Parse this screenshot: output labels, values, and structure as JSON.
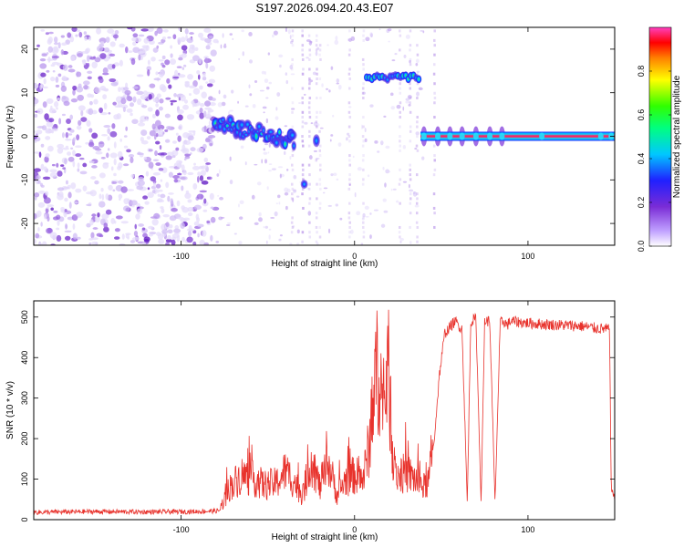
{
  "title": "S197.2026.094.20.43.E07",
  "chart_data": [
    {
      "type": "heatmap",
      "xlabel": "Height of straight line (km)",
      "ylabel": "Frequency (Hz)",
      "xlim": [
        -185,
        150
      ],
      "ylim": [
        -25,
        25
      ],
      "xticks": [
        -100,
        0,
        100
      ],
      "xtick_labels": [
        "-100",
        "0",
        "100"
      ],
      "yticks": [
        -20,
        -10,
        0,
        10,
        20
      ],
      "ytick_labels": [
        "-20",
        "-10",
        "0",
        "10",
        "20"
      ],
      "colorbar": {
        "label": "Normalized spectral amplitude",
        "range": [
          0,
          1
        ],
        "ticks": [
          0.0,
          0.2,
          0.4,
          0.6,
          0.8
        ],
        "tick_labels": [
          "0.0",
          "0.2",
          "0.4",
          "0.6",
          "0.8"
        ]
      },
      "features": [
        {
          "name": "broadband noise",
          "x_range": [
            -185,
            -80
          ],
          "freq_range": [
            -25,
            25
          ],
          "amplitude": 0.15
        },
        {
          "name": "descending track",
          "x_range": [
            -80,
            -35
          ],
          "freq_start": 3,
          "freq_end": -1,
          "amplitude": 0.35
        },
        {
          "name": "isolated blob",
          "x": -29,
          "freq": -11,
          "amplitude": 0.35
        },
        {
          "name": "blob",
          "x": -22,
          "freq": -1,
          "amplitude": 0.35
        },
        {
          "name": "harmonic band",
          "x_range": [
            7,
            37
          ],
          "freq": 13.5,
          "amplitude": 0.4
        },
        {
          "name": "carrier line",
          "x_range": [
            38,
            150
          ],
          "freq": 0,
          "amplitude": 0.95
        }
      ]
    },
    {
      "type": "line",
      "xlabel": "Height of straight line (km)",
      "ylabel": "SNR (10 * v/v)",
      "xlim": [
        -185,
        150
      ],
      "ylim": [
        0,
        540
      ],
      "xticks": [
        -100,
        0,
        100
      ],
      "xtick_labels": [
        "-100",
        "0",
        "100"
      ],
      "yticks": [
        0,
        100,
        200,
        300,
        400,
        500
      ],
      "ytick_labels": [
        "0",
        "100",
        "200",
        "300",
        "400",
        "500"
      ],
      "series": [
        {
          "name": "SNR",
          "color": "#e8322c",
          "x": [
            -185,
            -150,
            -120,
            -90,
            -78,
            -72,
            -65,
            -58,
            -52,
            -45,
            -40,
            -35,
            -30,
            -25,
            -20,
            -15,
            -10,
            -5,
            0,
            5,
            9,
            12,
            14,
            17,
            19,
            21,
            23,
            25,
            30,
            35,
            40,
            43,
            46,
            49,
            52,
            55,
            58,
            62,
            65,
            67,
            70,
            73,
            75,
            78,
            81,
            84,
            86,
            88,
            90,
            100,
            110,
            120,
            130,
            140,
            147,
            148,
            150
          ],
          "values": [
            18,
            20,
            19,
            20,
            22,
            80,
            110,
            100,
            85,
            90,
            120,
            95,
            60,
            150,
            80,
            140,
            60,
            100,
            110,
            100,
            200,
            350,
            380,
            250,
            410,
            240,
            120,
            110,
            115,
            100,
            80,
            100,
            200,
            360,
            460,
            475,
            490,
            470,
            40,
            490,
            495,
            40,
            490,
            490,
            40,
            485,
            490,
            480,
            490,
            485,
            482,
            480,
            478,
            472,
            470,
            80,
            50
          ]
        }
      ]
    }
  ]
}
